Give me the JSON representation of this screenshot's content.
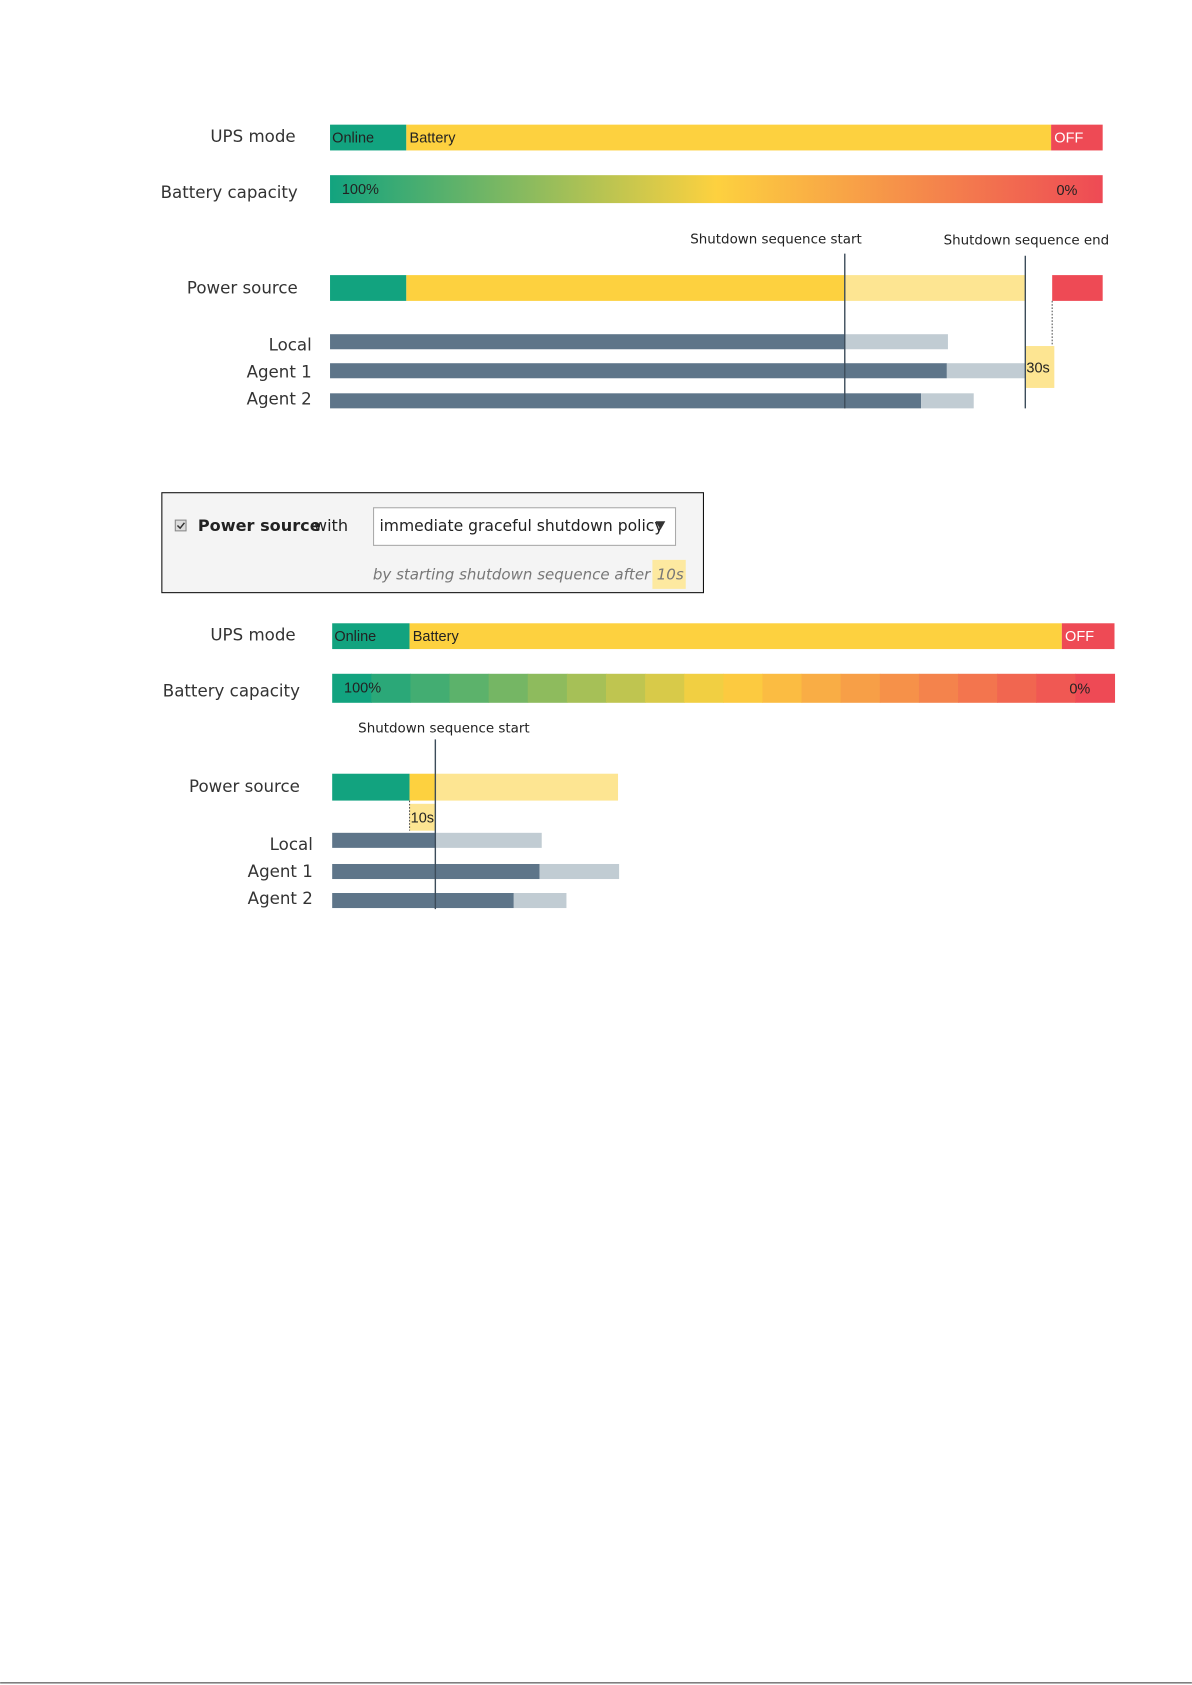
{
  "diagram_1": {
    "ups_mode": {
      "label": "UPS mode",
      "segments": [
        "Online",
        "Battery",
        "OFF"
      ]
    },
    "battery_capacity": {
      "label": "Battery capacity",
      "start": "100%",
      "end": "0%"
    },
    "markers": [
      "Shutdown sequence start",
      "Shutdown sequence end"
    ],
    "power_source": {
      "label": "Power source"
    },
    "agents": [
      "Local",
      "Agent 1",
      "Agent 2"
    ],
    "delay": "30s"
  },
  "policy_panel": {
    "option_bold": "Power source",
    "option_text": "with",
    "policy": "immediate graceful shutdown policy",
    "description": "by starting shutdown sequence after",
    "delay": "10s"
  },
  "diagram_2": {
    "ups_mode": {
      "label": "UPS mode",
      "segments": [
        "Online",
        "Battery",
        "OFF"
      ]
    },
    "battery_capacity": {
      "label": "Battery capacity",
      "start": "100%",
      "end": "0%"
    },
    "markers": [
      "Shutdown sequence start"
    ],
    "power_source": {
      "label": "Power source"
    },
    "agents": [
      "Local",
      "Agent 1",
      "Agent 2"
    ],
    "delay": "10s"
  }
}
